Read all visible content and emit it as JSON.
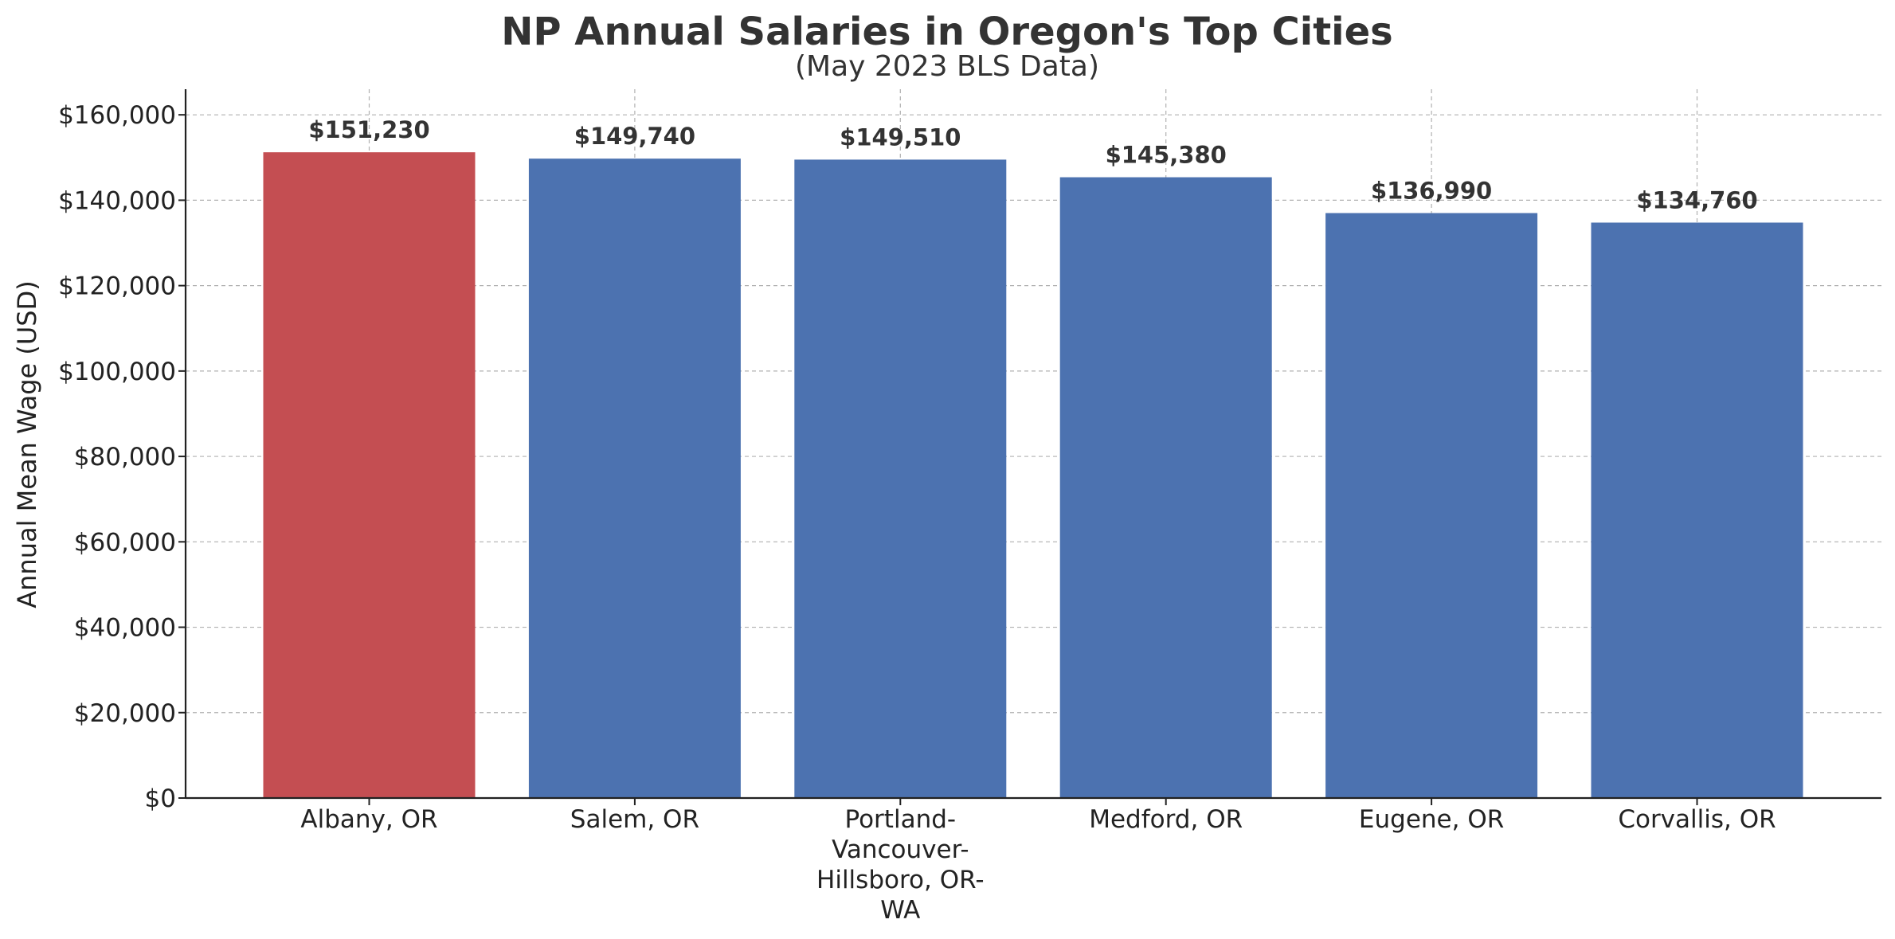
{
  "chart_data": {
    "type": "bar",
    "title": "NP Annual Salaries in Oregon's Top Cities",
    "subtitle": "(May 2023 BLS Data)",
    "xlabel": "",
    "ylabel": "Annual Mean Wage (USD)",
    "categories": [
      "Albany, OR",
      "Salem, OR",
      "Portland-Vancouver-Hillsboro, OR-WA",
      "Medford, OR",
      "Eugene, OR",
      "Corvallis, OR"
    ],
    "category_label_lines": [
      [
        "Albany, OR"
      ],
      [
        "Salem, OR"
      ],
      [
        "Portland-",
        "Vancouver-",
        "Hillsboro, OR-",
        "WA"
      ],
      [
        "Medford, OR"
      ],
      [
        "Eugene, OR"
      ],
      [
        "Corvallis, OR"
      ]
    ],
    "values": [
      151230,
      149740,
      149510,
      145380,
      136990,
      134760
    ],
    "value_labels": [
      "$151,230",
      "$149,740",
      "$149,510",
      "$145,380",
      "$136,990",
      "$134,760"
    ],
    "bar_colors": [
      "#c44e52",
      "#4c72b0",
      "#4c72b0",
      "#4c72b0",
      "#4c72b0",
      "#4c72b0"
    ],
    "ylim": [
      0,
      166000
    ],
    "yticks": [
      0,
      20000,
      40000,
      60000,
      80000,
      100000,
      120000,
      140000,
      160000
    ],
    "ytick_labels": [
      "$0",
      "$20,000",
      "$40,000",
      "$60,000",
      "$80,000",
      "$100,000",
      "$120,000",
      "$140,000",
      "$160,000"
    ],
    "grid": true,
    "grid_color": "#b0b0b0",
    "legend": "none"
  }
}
